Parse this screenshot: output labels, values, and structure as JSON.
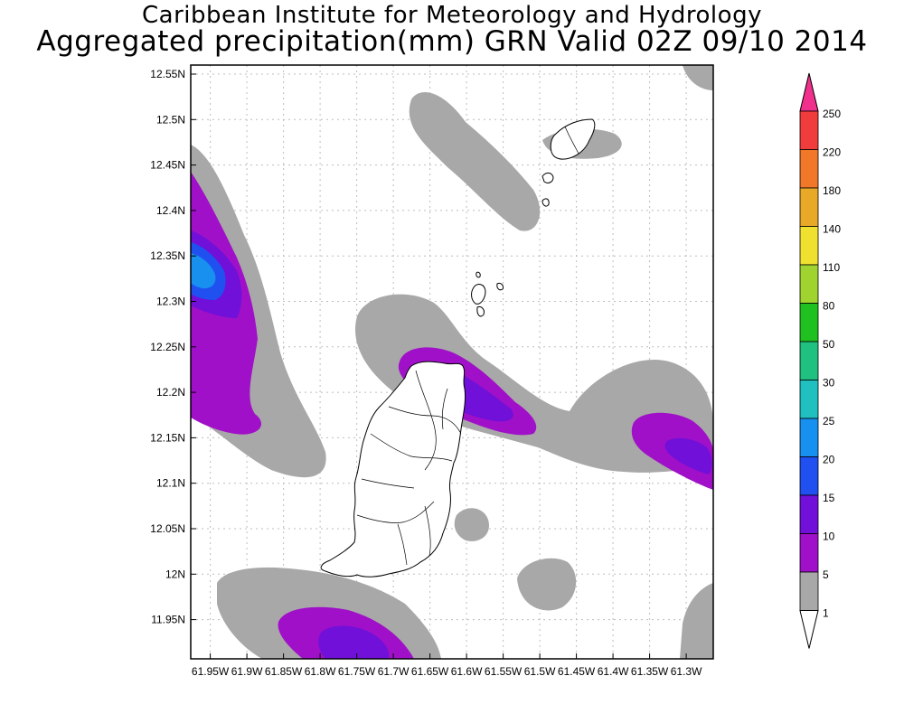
{
  "header": {
    "line1": "Caribbean Institute for Meteorology and Hydrology",
    "line2": "Aggregated precipitation(mm) GRN Valid 02Z 09/10 2014"
  },
  "axes": {
    "lat_labels": [
      "12.55N",
      "12.5N",
      "12.45N",
      "12.4N",
      "12.35N",
      "12.3N",
      "12.25N",
      "12.2N",
      "12.15N",
      "12.1N",
      "12.05N",
      "12N",
      "11.95N"
    ],
    "lon_labels": [
      "61.95W",
      "61.9W",
      "61.85W",
      "61.8W",
      "61.75W",
      "61.7W",
      "61.65W",
      "61.6W",
      "61.55W",
      "61.5W",
      "61.45W",
      "61.4W",
      "61.35W",
      "61.3W"
    ]
  },
  "legend": {
    "levels": [
      {
        "label": "250",
        "color": "#f0308c"
      },
      {
        "label": "220",
        "color": "#f03c3c"
      },
      {
        "label": "180",
        "color": "#f07828"
      },
      {
        "label": "140",
        "color": "#e8a828"
      },
      {
        "label": "110",
        "color": "#f0e030"
      },
      {
        "label": "80",
        "color": "#a0d230"
      },
      {
        "label": "50",
        "color": "#20c020"
      },
      {
        "label": "30",
        "color": "#20c080"
      },
      {
        "label": "25",
        "color": "#20c0c0"
      },
      {
        "label": "20",
        "color": "#1890f0"
      },
      {
        "label": "15",
        "color": "#2050f0"
      },
      {
        "label": "10",
        "color": "#7010d8"
      },
      {
        "label": "5",
        "color": "#a010c8"
      },
      {
        "label": "1",
        "color": "#a8a8a8"
      }
    ],
    "bottom_color": "#ffffff"
  },
  "colors": {
    "gray": "#a8a8a8",
    "purple": "#a010c8",
    "violet": "#7010d8",
    "blue": "#2050f0",
    "lightblue": "#1890f0"
  }
}
